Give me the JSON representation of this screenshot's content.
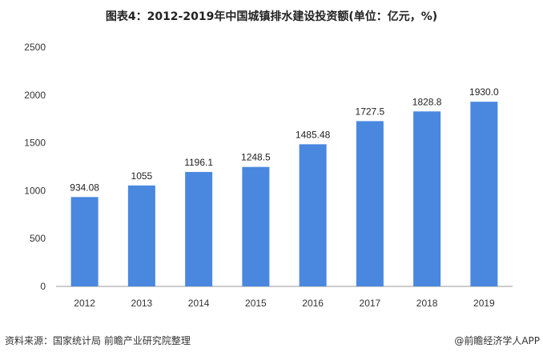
{
  "chart_data": {
    "type": "bar",
    "title": "图表4：2012-2019年中国城镇排水建设投资额(单位：亿元，%)",
    "categories": [
      "2012",
      "2013",
      "2014",
      "2015",
      "2016",
      "2017",
      "2018",
      "2019"
    ],
    "values": [
      934.08,
      1055,
      1196.1,
      1248.5,
      1485.48,
      1727.5,
      1828.8,
      1930.0
    ],
    "data_labels": [
      "934.08",
      "1055",
      "1196.1",
      "1248.5",
      "1485.48",
      "1727.5",
      "1828.8",
      "1930.0"
    ],
    "xlabel": "",
    "ylabel": "",
    "ylim": [
      0,
      2500
    ],
    "yticks": [
      0,
      500,
      1000,
      1500,
      2000,
      2500
    ],
    "grid": false,
    "bar_color": "#4a88e0"
  },
  "footer": {
    "source": "资料来源：国家统计局 前瞻产业研究院整理",
    "credit": "@前瞻经济学人APP"
  }
}
